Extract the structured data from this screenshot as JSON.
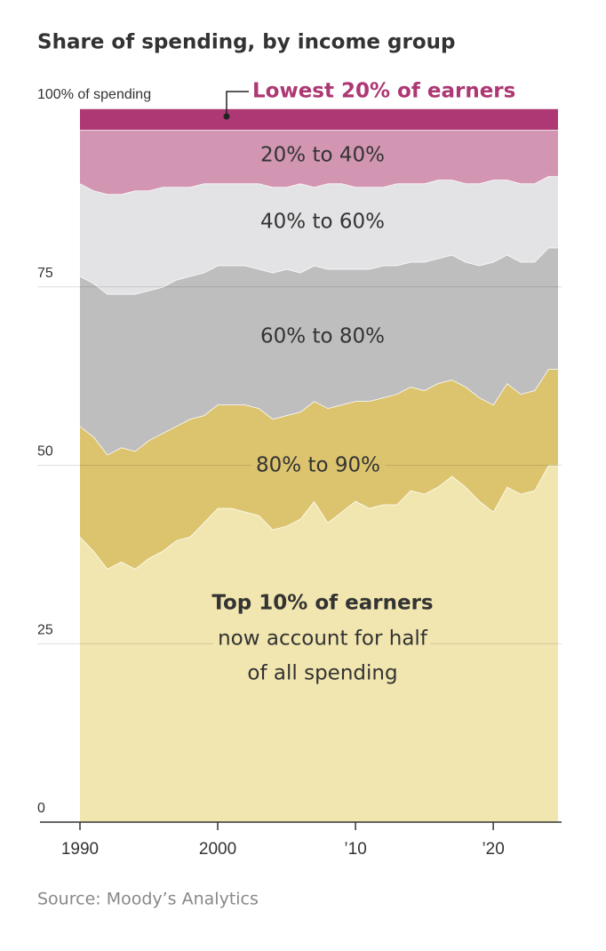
{
  "chart_data": {
    "type": "stacked-area",
    "title": "Share of spending, by income group",
    "source": "Source: Moody’s Analytics",
    "annotations": [
      "now account for half",
      "of all spending"
    ],
    "x": [
      1990,
      1991,
      1992,
      1993,
      1994,
      1995,
      1996,
      1997,
      1998,
      1999,
      2000,
      2001,
      2002,
      2003,
      2004,
      2005,
      2006,
      2007,
      2008,
      2009,
      2010,
      2011,
      2012,
      2013,
      2014,
      2015,
      2016,
      2017,
      2018,
      2019,
      2020,
      2021,
      2022,
      2023,
      2024,
      2024.7
    ],
    "xlim": [
      1990,
      2024.7
    ],
    "xticks": [
      1990,
      2000,
      {
        "value": 2010,
        "label": "’10"
      },
      {
        "value": 2020,
        "label": "’20"
      }
    ],
    "ylim": [
      0,
      100
    ],
    "yticks": [
      0,
      25,
      50,
      75,
      {
        "value": 100,
        "label": "100% of spending"
      }
    ],
    "grid": true,
    "series": [
      {
        "name": "Top 10% of earners",
        "color": "#f1e6af",
        "values": [
          40,
          38,
          35.5,
          36.5,
          35.5,
          37,
          38,
          39.5,
          40,
          42,
          44,
          44,
          43.5,
          43,
          41,
          41.5,
          42.5,
          45,
          42,
          43.5,
          45,
          44,
          44.5,
          44.5,
          46.5,
          46,
          47,
          48.5,
          47,
          45,
          43.5,
          47,
          46,
          46.5,
          50,
          50
        ]
      },
      {
        "name": "80% to 90%",
        "color": "#dcc46f",
        "values": [
          15.5,
          16,
          16,
          16,
          16.5,
          16.5,
          16.5,
          16,
          16.5,
          15,
          14.5,
          14.5,
          15,
          15,
          15.5,
          15.5,
          15,
          14,
          16,
          15,
          14,
          15,
          15,
          15.5,
          14.5,
          14.5,
          14.5,
          13.5,
          14,
          14.5,
          15,
          14.5,
          14,
          14,
          13.5,
          13.5
        ]
      },
      {
        "name": "60% to 80%",
        "color": "#bebebe",
        "values": [
          21,
          21.5,
          22.5,
          21.5,
          22,
          21,
          20.5,
          20.5,
          20,
          20,
          19.5,
          19.5,
          19.5,
          19.5,
          20.5,
          20.5,
          19.5,
          19,
          19.5,
          19,
          18.5,
          18.5,
          18.5,
          18,
          17.5,
          18,
          17.5,
          17.5,
          17.5,
          18.5,
          20,
          18,
          18.5,
          18,
          17,
          17
        ]
      },
      {
        "name": "40% to 60%",
        "color": "#e3e3e5",
        "values": [
          13,
          13,
          14,
          14,
          14.5,
          14,
          14,
          13,
          12.5,
          12.5,
          11.5,
          11.5,
          11.5,
          12,
          12,
          11.5,
          12.5,
          11,
          12,
          12,
          11.5,
          11.5,
          11,
          11.5,
          11,
          11,
          11,
          10.5,
          11,
          11.5,
          11.5,
          10.5,
          11,
          11,
          10,
          10
        ]
      },
      {
        "name": "20% to 40%",
        "color": "#d296b2",
        "values": [
          7.5,
          8.5,
          9,
          9,
          8.5,
          8.5,
          8,
          8,
          8,
          7.5,
          7.5,
          7.5,
          7.5,
          7.5,
          8,
          8,
          7.5,
          8,
          7.5,
          7.5,
          8,
          8,
          8,
          7.5,
          7.5,
          7.5,
          7,
          7,
          7.5,
          7.5,
          7,
          7,
          7.5,
          7.5,
          6.5,
          6.5
        ]
      },
      {
        "name": "Lowest 20% of earners",
        "color": "#ad3873",
        "values": [
          3,
          3,
          3,
          3,
          3,
          3,
          3,
          3,
          3,
          3,
          3,
          3,
          3,
          3,
          3,
          3,
          3,
          3,
          3,
          3,
          3,
          3,
          3,
          3,
          3,
          3,
          3,
          3,
          3,
          3,
          3,
          3,
          3,
          3,
          3,
          3
        ]
      }
    ]
  }
}
